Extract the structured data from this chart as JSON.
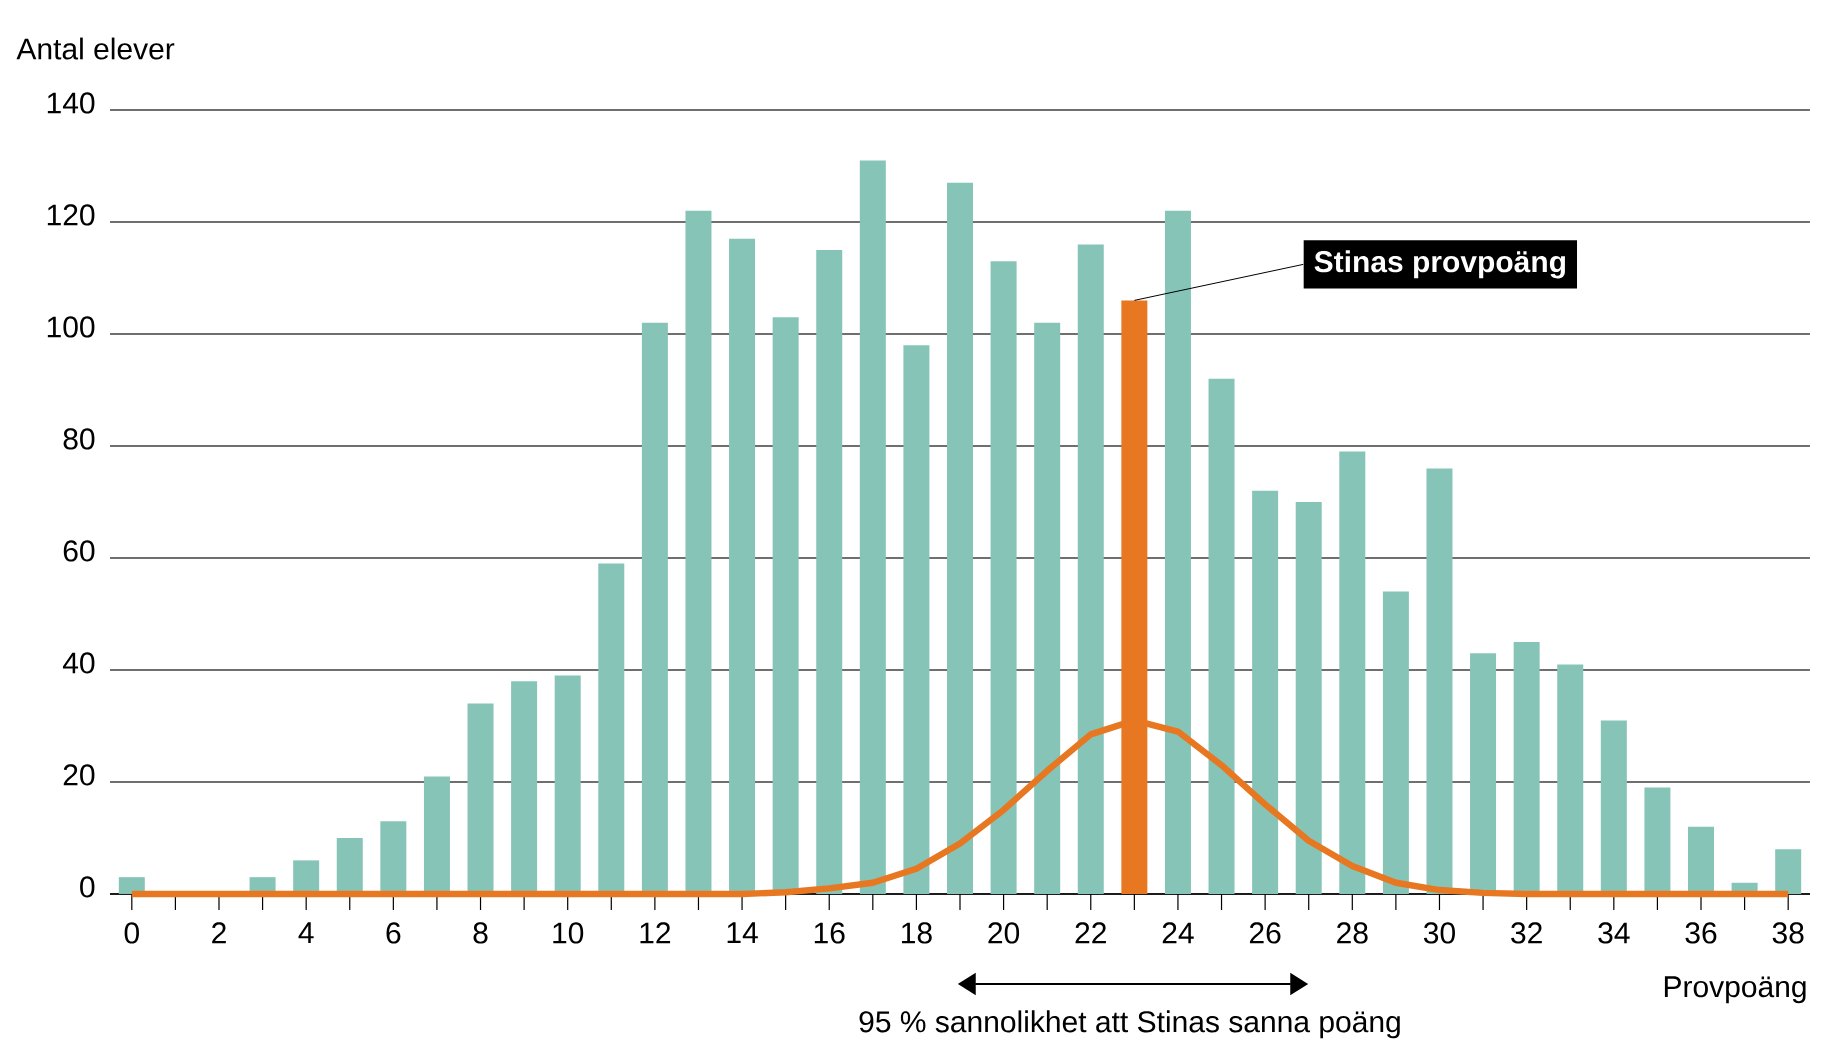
{
  "chart_data": {
    "type": "bar",
    "xlabel": "Provpoäng",
    "ylabel": "Antal elever",
    "x": [
      0,
      1,
      2,
      3,
      4,
      5,
      6,
      7,
      8,
      9,
      10,
      11,
      12,
      13,
      14,
      15,
      16,
      17,
      18,
      19,
      20,
      21,
      22,
      23,
      24,
      25,
      26,
      27,
      28,
      29,
      30,
      31,
      32,
      33,
      34,
      35,
      36,
      37,
      38
    ],
    "series": [
      {
        "values": [
          3,
          0,
          0,
          3,
          6,
          10,
          13,
          21,
          34,
          38,
          39,
          59,
          102,
          122,
          117,
          103,
          115,
          131,
          98,
          127,
          113,
          102,
          116,
          106,
          122,
          92,
          72,
          70,
          79,
          54,
          76,
          43,
          45,
          41,
          31,
          19,
          12,
          2,
          8
        ],
        "colors": [
          "#86c4b8",
          "#86c4b8",
          "#86c4b8",
          "#86c4b8",
          "#86c4b8",
          "#86c4b8",
          "#86c4b8",
          "#86c4b8",
          "#86c4b8",
          "#86c4b8",
          "#86c4b8",
          "#86c4b8",
          "#86c4b8",
          "#86c4b8",
          "#86c4b8",
          "#86c4b8",
          "#86c4b8",
          "#86c4b8",
          "#86c4b8",
          "#86c4b8",
          "#86c4b8",
          "#86c4b8",
          "#86c4b8",
          "#e87722",
          "#86c4b8",
          "#86c4b8",
          "#86c4b8",
          "#86c4b8",
          "#86c4b8",
          "#86c4b8",
          "#86c4b8",
          "#86c4b8",
          "#86c4b8",
          "#86c4b8",
          "#86c4b8",
          "#86c4b8",
          "#86c4b8",
          "#86c4b8",
          "#86c4b8"
        ]
      },
      {
        "type": "line",
        "color": "#e87722",
        "values": [
          0,
          0,
          0,
          0,
          0,
          0,
          0,
          0,
          0,
          0,
          0,
          0,
          0,
          0,
          0,
          0.3,
          1,
          2,
          4.5,
          9,
          15,
          22,
          28.5,
          31,
          29,
          23,
          16,
          9.5,
          5,
          2,
          0.7,
          0.2,
          0,
          0,
          0,
          0,
          0,
          0,
          0
        ]
      }
    ],
    "xlim": [
      -0.5,
      38.5
    ],
    "xticks": [
      0,
      2,
      4,
      6,
      8,
      10,
      12,
      14,
      16,
      18,
      20,
      22,
      24,
      26,
      28,
      30,
      32,
      34,
      36,
      38
    ],
    "ylim": [
      0,
      140
    ],
    "yticks": [
      0,
      20,
      40,
      60,
      80,
      100,
      120,
      140
    ],
    "grid": "y",
    "marker": "none",
    "line_style": "solid",
    "annotations": [
      {
        "text": "Stinas provpoäng",
        "x": 23,
        "y": 106
      },
      "95 % sannolikhet att Stinas sanna poäng"
    ]
  }
}
